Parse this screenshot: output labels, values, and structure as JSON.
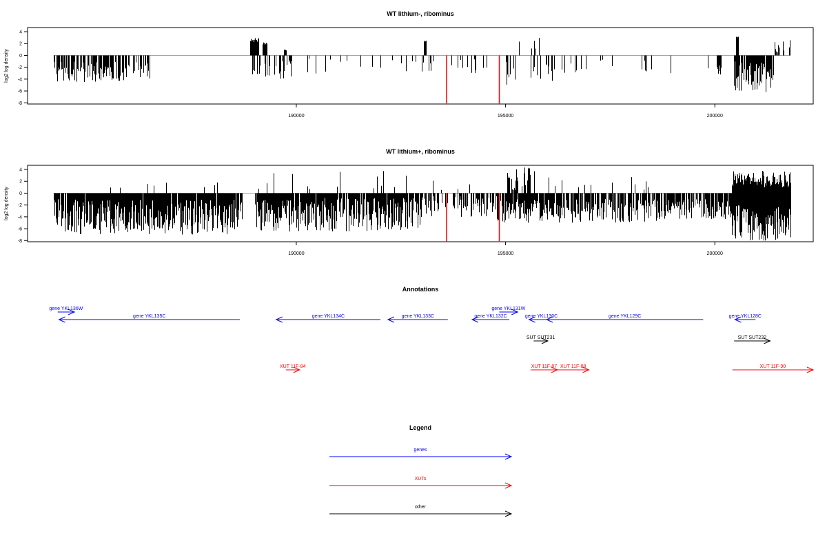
{
  "chart_data": [
    {
      "type": "bar",
      "title": "WT lithium-, ribominus",
      "ylabel": "log2 log density",
      "xlabel": "",
      "xlim": [
        183580,
        202350
      ],
      "ylim": [
        -8.2,
        4.7
      ],
      "yticks": [
        4,
        2,
        0,
        -2,
        -4,
        -6,
        -8
      ],
      "xticks": [
        190000,
        195000,
        200000
      ],
      "grid": false,
      "highlighted_positions": [
        193590,
        194850
      ],
      "highlight_values": [
        -8.1,
        -8.2
      ],
      "highlight_color": "#ff0000",
      "segments": [
        {
          "from": 184200,
          "to": 186500,
          "density": 0.7,
          "min": -4.5,
          "max": -1.0
        },
        {
          "from": 188900,
          "to": 189100,
          "density": 1.0,
          "min": 2.2,
          "max": 3.0
        },
        {
          "from": 188950,
          "to": 189900,
          "density": 0.35,
          "min": -4.0,
          "max": -0.8
        },
        {
          "from": 189200,
          "to": 189300,
          "density": 1.0,
          "min": 1.8,
          "max": 2.2
        },
        {
          "from": 189700,
          "to": 189750,
          "density": 1.0,
          "min": 0.8,
          "max": 1.0
        },
        {
          "from": 190200,
          "to": 192800,
          "density": 0.12,
          "min": -3.5,
          "max": -0.5
        },
        {
          "from": 192800,
          "to": 193300,
          "density": 0.3,
          "min": -3.0,
          "max": -0.8
        },
        {
          "from": 193050,
          "to": 193100,
          "density": 1.0,
          "min": 2.2,
          "max": 2.5
        },
        {
          "from": 193400,
          "to": 194600,
          "density": 0.12,
          "min": -3.0,
          "max": -0.5
        },
        {
          "from": 195000,
          "to": 196200,
          "density": 0.3,
          "min": -5.0,
          "max": -0.8
        },
        {
          "from": 195300,
          "to": 195800,
          "density": 0.15,
          "min": 1.0,
          "max": 3.2
        },
        {
          "from": 196200,
          "to": 200000,
          "density": 0.08,
          "min": -3.2,
          "max": -0.5
        },
        {
          "from": 200050,
          "to": 200150,
          "density": 1.0,
          "min": -3.4,
          "max": -1.5
        },
        {
          "from": 200450,
          "to": 201400,
          "density": 0.9,
          "min": -6.5,
          "max": -1.0
        },
        {
          "from": 200500,
          "to": 200550,
          "density": 1.0,
          "min": 3.0,
          "max": 3.2
        },
        {
          "from": 201400,
          "to": 201800,
          "density": 0.3,
          "min": 0.5,
          "max": 3.0
        }
      ]
    },
    {
      "type": "bar",
      "title": "WT lithium+, ribominus",
      "ylabel": "log2 log density",
      "xlabel": "",
      "xlim": [
        183580,
        202350
      ],
      "ylim": [
        -8.2,
        4.7
      ],
      "yticks": [
        4,
        2,
        0,
        -2,
        -4,
        -6,
        -8
      ],
      "xticks": [
        190000,
        195000,
        200000
      ],
      "grid": false,
      "highlighted_positions": [
        193590,
        194850
      ],
      "highlight_values": [
        -8.2,
        -8.1
      ],
      "highlight_color": "#ff0000",
      "segments": [
        {
          "from": 184200,
          "to": 188700,
          "density": 0.95,
          "min": -7.0,
          "max": -1.0
        },
        {
          "from": 185200,
          "to": 188700,
          "density": 0.02,
          "min": 0.5,
          "max": 1.8
        },
        {
          "from": 189000,
          "to": 193000,
          "density": 0.9,
          "min": -6.5,
          "max": -0.8
        },
        {
          "from": 189000,
          "to": 192800,
          "density": 0.05,
          "min": 0.5,
          "max": 4.2
        },
        {
          "from": 193000,
          "to": 194800,
          "density": 0.6,
          "min": -4.0,
          "max": -0.5
        },
        {
          "from": 193000,
          "to": 194800,
          "density": 0.04,
          "min": 0.5,
          "max": 2.5
        },
        {
          "from": 194800,
          "to": 196000,
          "density": 0.9,
          "min": -5.0,
          "max": -1.0
        },
        {
          "from": 195000,
          "to": 195700,
          "density": 0.5,
          "min": 0.5,
          "max": 4.5
        },
        {
          "from": 196000,
          "to": 198800,
          "density": 0.7,
          "min": -5.0,
          "max": -1.0
        },
        {
          "from": 196000,
          "to": 198800,
          "density": 0.05,
          "min": 0.5,
          "max": 3.0
        },
        {
          "from": 198800,
          "to": 200400,
          "density": 0.8,
          "min": -4.5,
          "max": -1.0
        },
        {
          "from": 200400,
          "to": 201800,
          "density": 1.0,
          "min": -8.0,
          "max": -2.0
        },
        {
          "from": 200400,
          "to": 201800,
          "density": 1.0,
          "min": 1.0,
          "max": 3.8
        }
      ]
    }
  ],
  "annotations": {
    "title": "Annotations",
    "items": [
      {
        "label": "gene YKL136W",
        "kind": "gene",
        "start": 184300,
        "end": 184700,
        "row": 0
      },
      {
        "label": "gene YKL135C",
        "kind": "gene",
        "start": 188650,
        "end": 184330,
        "row": 1
      },
      {
        "label": "gene YKL134C",
        "kind": "gene",
        "start": 192010,
        "end": 189520,
        "row": 1
      },
      {
        "label": "gene YKL133C",
        "kind": "gene",
        "start": 193620,
        "end": 192190,
        "row": 1
      },
      {
        "label": "gene YKL131W",
        "kind": "gene",
        "start": 194850,
        "end": 195290,
        "row": 0
      },
      {
        "label": "gene YKL132C",
        "kind": "gene",
        "start": 195090,
        "end": 194200,
        "row": 1
      },
      {
        "label": "gene YKL130C",
        "kind": "gene",
        "start": 196150,
        "end": 195560,
        "row": 1
      },
      {
        "label": "gene YKL129C",
        "kind": "gene",
        "start": 199720,
        "end": 195980,
        "row": 1
      },
      {
        "label": "gene YKL128C",
        "kind": "gene",
        "start": 200970,
        "end": 200480,
        "row": 1
      },
      {
        "label": "SUT SUT231",
        "kind": "other",
        "start": 195670,
        "end": 196010,
        "row": 2
      },
      {
        "label": "SUT SUT232",
        "kind": "other",
        "start": 200460,
        "end": 201320,
        "row": 2
      },
      {
        "label": "XUT 11F-84",
        "kind": "xut",
        "start": 189750,
        "end": 190080,
        "row": 3
      },
      {
        "label": "XUT 11F-87",
        "kind": "xut",
        "start": 195600,
        "end": 196240,
        "row": 3
      },
      {
        "label": "XUT 11F-88",
        "kind": "xut",
        "start": 196240,
        "end": 196990,
        "row": 3
      },
      {
        "label": "XUT 11F-90",
        "kind": "xut",
        "start": 200420,
        "end": 202350,
        "row": 3
      }
    ]
  },
  "legend": {
    "title": "Legend",
    "entries": [
      {
        "label": "genes",
        "kind": "gene"
      },
      {
        "label": "XUTs",
        "kind": "xut"
      },
      {
        "label": "other",
        "kind": "other"
      }
    ]
  },
  "colors": {
    "gene": "#0000ff",
    "xut": "#ff0000",
    "other": "#000000",
    "axis": "#000000",
    "bars": "#000000"
  }
}
